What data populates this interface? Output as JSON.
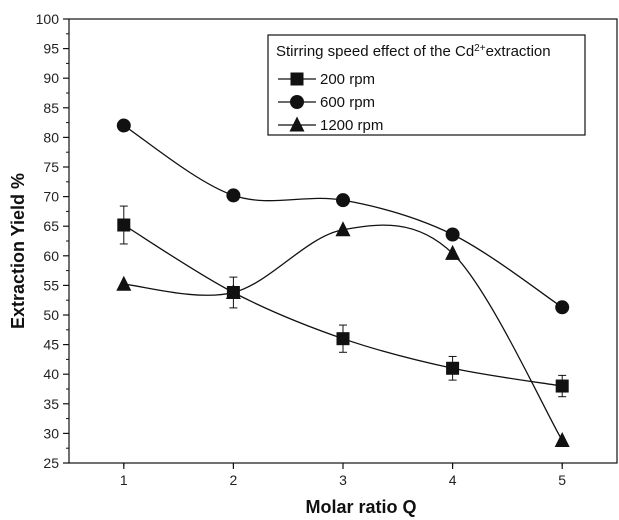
{
  "chart_data": {
    "type": "line",
    "title": "",
    "xlabel": "Molar ratio Q",
    "ylabel": "Extraction Yield %",
    "x": [
      1,
      2,
      3,
      4,
      5
    ],
    "xlim": [
      0.5,
      5.5
    ],
    "ylim": [
      25,
      100
    ],
    "xticks": [
      1,
      2,
      3,
      4,
      5
    ],
    "yticks": [
      25,
      30,
      35,
      40,
      45,
      50,
      55,
      60,
      65,
      70,
      75,
      80,
      85,
      90,
      95,
      100
    ],
    "grid": false,
    "legend": {
      "title_prefix": "Stirring speed effect of the Cd",
      "title_sup": "2+",
      "title_suffix": "extraction",
      "placement": "top-right"
    },
    "series": [
      {
        "name": "200 rpm",
        "marker": "square",
        "values": [
          65.2,
          53.8,
          46.0,
          41.0,
          38.0
        ],
        "error": [
          3.2,
          2.6,
          2.3,
          2.0,
          1.8
        ]
      },
      {
        "name": "600 rpm",
        "marker": "circle",
        "values": [
          82.0,
          70.2,
          69.4,
          63.6,
          51.3
        ]
      },
      {
        "name": "1200 rpm",
        "marker": "triangle",
        "values": [
          55.2,
          53.8,
          64.4,
          60.4,
          28.8
        ]
      }
    ]
  }
}
